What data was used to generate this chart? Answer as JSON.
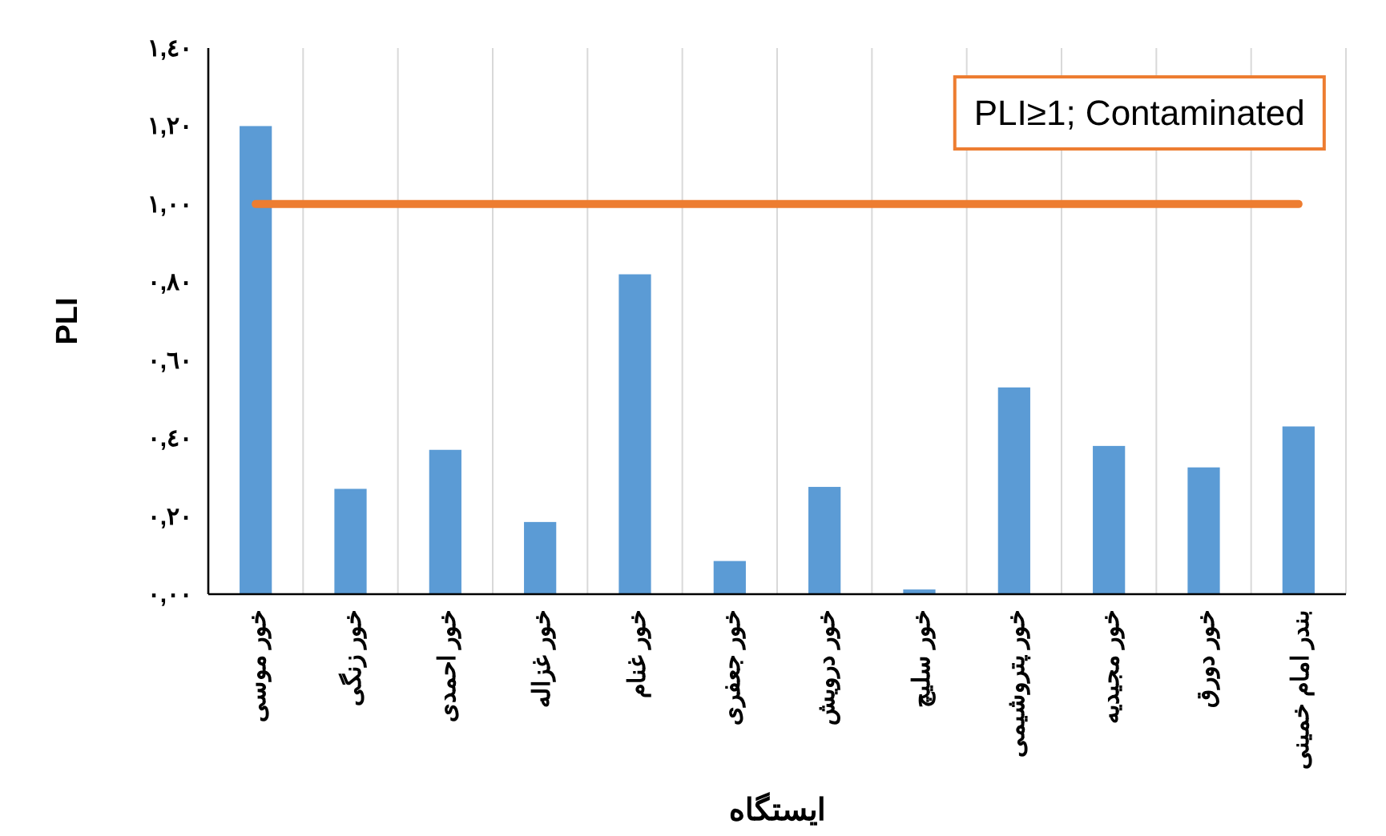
{
  "chart_data": {
    "type": "bar",
    "xlabel": "ایستگاه",
    "ylabel": "PLI",
    "categories": [
      "خور موسی",
      "خور زنگی",
      "خور احمدی",
      "خور غزاله",
      "خور غنام",
      "خور جعفری",
      "خور درویش",
      "خور سلیچ",
      "خور پتروشیمی",
      "خور مجیدیه",
      "خور دورق",
      "بندر امام خمینی"
    ],
    "values": [
      1.2,
      0.27,
      0.37,
      0.185,
      0.82,
      0.085,
      0.275,
      0.012,
      0.53,
      0.38,
      0.325,
      0.43
    ],
    "color": "#5b9bd5",
    "ylim": [
      0,
      1.4
    ],
    "yticks": [
      {
        "value": 0,
        "label": "٠,٠٠"
      },
      {
        "value": 0.2,
        "label": "٠,٢٠"
      },
      {
        "value": 0.4,
        "label": "٠,٤٠"
      },
      {
        "value": 0.6,
        "label": "٠,٦٠"
      },
      {
        "value": 0.8,
        "label": "٠,٨٠"
      },
      {
        "value": 1,
        "label": "١,٠٠"
      },
      {
        "value": 1.2,
        "label": "١,٢٠"
      },
      {
        "value": 1.4,
        "label": "١,٤٠"
      }
    ],
    "grid": "x",
    "ref_lines": [
      {
        "axis": "y",
        "value": 1,
        "label": "PLI≥1; Contaminated",
        "color": "#ed7d31"
      }
    ]
  }
}
